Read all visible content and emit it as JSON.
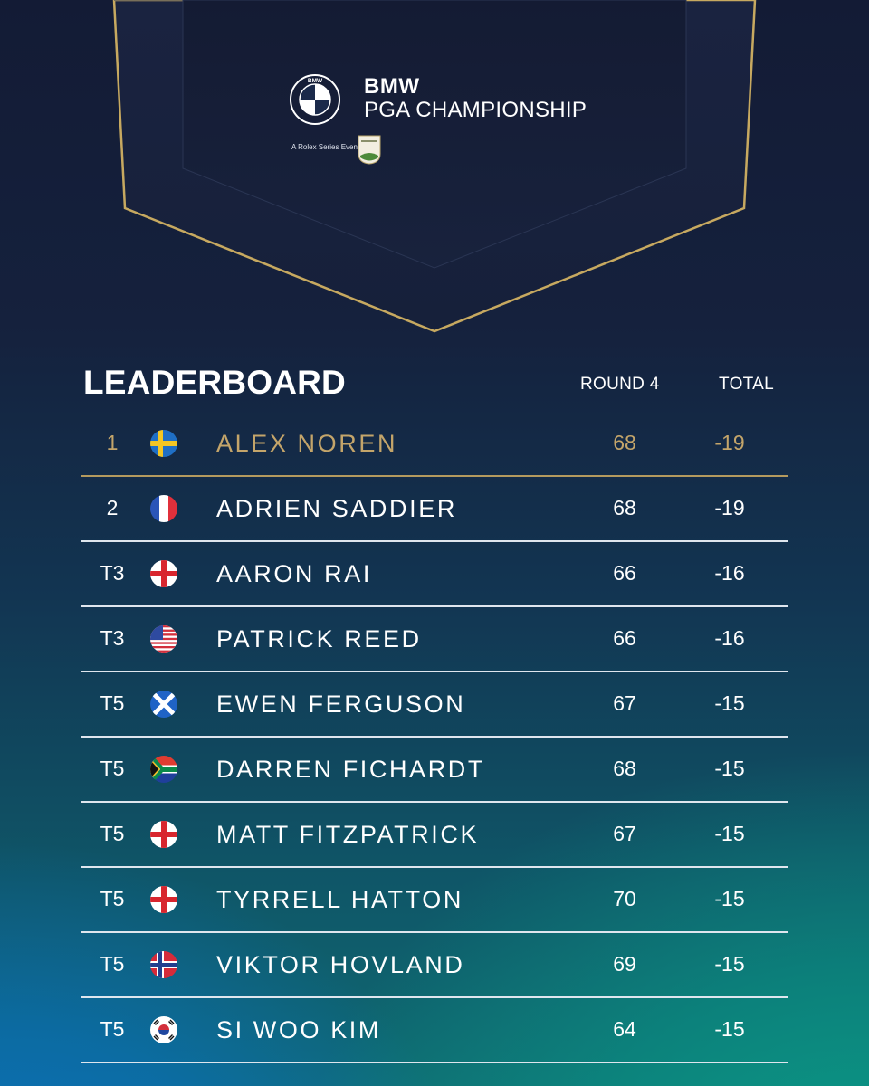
{
  "header": {
    "brand_line1": "BMW",
    "brand_line2": "PGA CHAMPIONSHIP",
    "rolex_text": "A Rolex Series Event",
    "roundel_letters": "BMW"
  },
  "leaderboard": {
    "title": "LEADERBOARD",
    "col_round": "ROUND 4",
    "col_total": "TOTAL",
    "rows": [
      {
        "pos": "1",
        "country": "sweden-flag",
        "name": "ALEX NOREN",
        "round4": "68",
        "total": "-19"
      },
      {
        "pos": "2",
        "country": "france-flag",
        "name": "ADRIEN SADDIER",
        "round4": "68",
        "total": "-19"
      },
      {
        "pos": "T3",
        "country": "england-flag",
        "name": "AARON RAI",
        "round4": "66",
        "total": "-16"
      },
      {
        "pos": "T3",
        "country": "usa-flag",
        "name": "PATRICK REED",
        "round4": "66",
        "total": "-16"
      },
      {
        "pos": "T5",
        "country": "scotland-flag",
        "name": "EWEN FERGUSON",
        "round4": "67",
        "total": "-15"
      },
      {
        "pos": "T5",
        "country": "south-africa-flag",
        "name": "DARREN FICHARDT",
        "round4": "68",
        "total": "-15"
      },
      {
        "pos": "T5",
        "country": "england-flag",
        "name": "MATT FITZPATRICK",
        "round4": "67",
        "total": "-15"
      },
      {
        "pos": "T5",
        "country": "england-flag",
        "name": "TYRRELL HATTON",
        "round4": "70",
        "total": "-15"
      },
      {
        "pos": "T5",
        "country": "norway-flag",
        "name": "VIKTOR HOVLAND",
        "round4": "69",
        "total": "-15"
      },
      {
        "pos": "T5",
        "country": "south-korea-flag",
        "name": "SI WOO KIM",
        "round4": "64",
        "total": "-15"
      }
    ]
  },
  "colors": {
    "gold": "#c4a56a",
    "leader_rule": "#b49a5e",
    "row_rule": "#dfe6ee",
    "bg_top": "#131b35",
    "bg_teal": "#0a9a86",
    "bg_blue": "#0a6fc4"
  }
}
